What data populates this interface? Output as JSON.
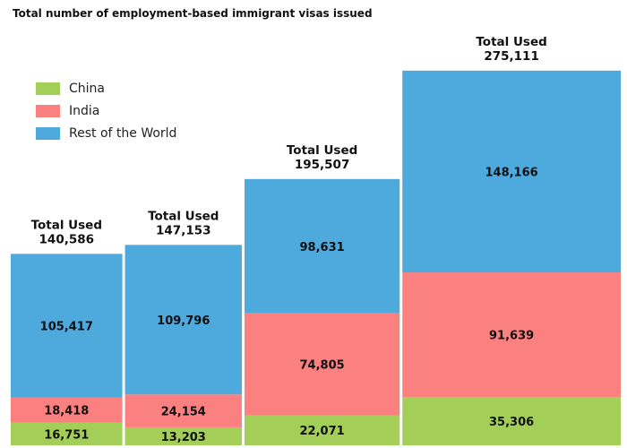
{
  "chart_data": {
    "type": "bar",
    "stacked": true,
    "variable_width": true,
    "title": "Total number of employment-based immigrant visas issued",
    "total_label": "Total Used",
    "totals": [
      140586,
      147153,
      195507,
      275111
    ],
    "totals_text": [
      "140,586",
      "147,153",
      "195,507",
      "275,111"
    ],
    "series": [
      {
        "name": "China",
        "color": "#a3ce57",
        "values": [
          16751,
          13203,
          22071,
          35306
        ],
        "labels": [
          "16,751",
          "13,203",
          "22,071",
          "35,306"
        ]
      },
      {
        "name": "India",
        "color": "#fb8080",
        "values": [
          18418,
          24154,
          74805,
          91639
        ],
        "labels": [
          "18,418",
          "24,154",
          "74,805",
          "91,639"
        ]
      },
      {
        "name": "Rest of the World",
        "color": "#4eaadc",
        "values": [
          105417,
          109796,
          98631,
          148166
        ],
        "labels": [
          "105,417",
          "109,796",
          "98,631",
          "148,166"
        ]
      }
    ],
    "legend_position": "top-left",
    "grid": false
  }
}
